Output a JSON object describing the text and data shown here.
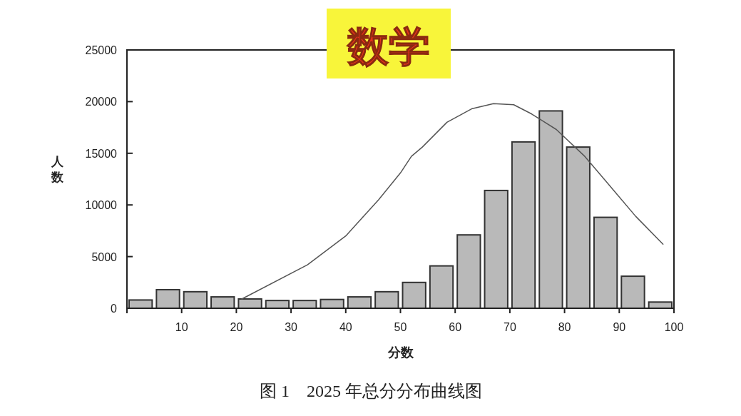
{
  "chart_data": {
    "type": "histogram",
    "title": "数学",
    "xlabel": "分数",
    "ylabel": "人数",
    "annotations": [
      "图 1　2025 年总分分布曲线图"
    ],
    "bins": [
      0,
      5,
      10,
      15,
      20,
      25,
      30,
      35,
      40,
      45,
      50,
      55,
      60,
      65,
      70,
      75,
      80,
      85,
      90,
      95,
      100
    ],
    "series": [
      {
        "color": "#b9b9b9",
        "values": [
          800,
          1800,
          1600,
          1100,
          900,
          750,
          750,
          850,
          1100,
          1600,
          2500,
          4100,
          7100,
          11400,
          16100,
          19100,
          15600,
          8800,
          3100,
          600
        ]
      },
      {
        "type": "line",
        "color": "#555555",
        "x": [
          21,
          33,
          40,
          46,
          50,
          52,
          54,
          58.5,
          63,
          67,
          70.7,
          74,
          78.5,
          83.7,
          89,
          93,
          98
        ],
        "values": [
          900,
          4200,
          7000,
          10500,
          13100,
          14700,
          15600,
          18000,
          19300,
          19800,
          19700,
          18800,
          17300,
          14700,
          11400,
          8900,
          6200
        ]
      }
    ],
    "xlim": [
      0,
      100
    ],
    "xticks": [
      {
        "value": 0,
        "label": null
      },
      10,
      20,
      30,
      40,
      50,
      60,
      70,
      80,
      90,
      100
    ],
    "ylim": [
      0,
      25000
    ],
    "yticks": [
      0,
      5000,
      10000,
      15000,
      20000,
      25000
    ],
    "grid": false
  }
}
